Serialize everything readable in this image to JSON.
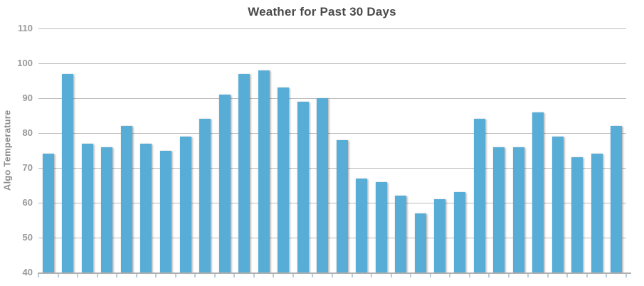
{
  "chart_data": {
    "type": "bar",
    "title": "Weather for Past 30 Days",
    "ylabel": "Algo Temperature",
    "xlabel": "",
    "values": [
      74,
      97,
      77,
      76,
      82,
      77,
      75,
      79,
      84,
      91,
      97,
      98,
      93,
      89,
      90,
      78,
      67,
      66,
      62,
      57,
      61,
      63,
      84,
      76,
      76,
      86,
      79,
      73,
      74,
      82
    ],
    "ylim": [
      40,
      110
    ],
    "y_ticks": [
      110,
      100,
      90,
      80,
      70,
      60,
      50,
      40
    ],
    "x_tick_labels": [],
    "grid": true,
    "legend": "none"
  },
  "colors": {
    "bar": "#58ADD6",
    "gridline": "#BDBDBD",
    "axis_line": "#B0B0B0",
    "x_tick": "#B9CEDC",
    "tick_label": "#9A9A9A",
    "title": "#4A4A4A",
    "axis_title": "#8D8D8D",
    "background": "#FFFFFF"
  }
}
